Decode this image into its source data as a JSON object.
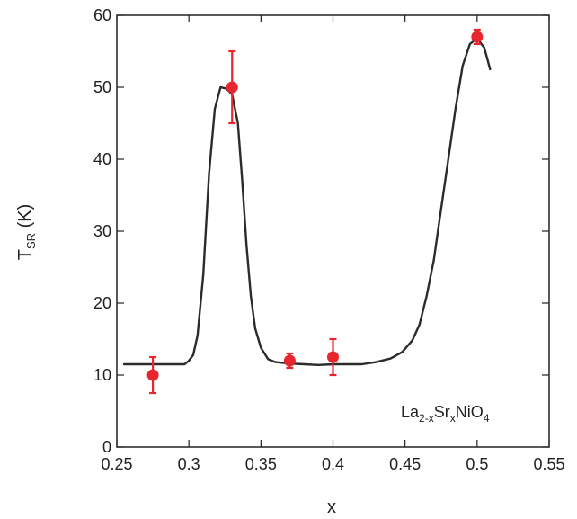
{
  "chart_data": {
    "type": "scatter",
    "xlabel": "x",
    "ylabel": {
      "main": "T",
      "sub": "SR",
      "unit": " (K)"
    },
    "xlim": [
      0.25,
      0.55
    ],
    "ylim": [
      0,
      60
    ],
    "xticks": [
      0.25,
      0.3,
      0.35,
      0.4,
      0.45,
      0.5,
      0.55
    ],
    "xtick_labels": [
      "0.25",
      "0.3",
      "0.35",
      "0.4",
      "0.45",
      "0.5",
      "0.55"
    ],
    "yticks": [
      0,
      10,
      20,
      30,
      40,
      50,
      60
    ],
    "ytick_labels": [
      "0",
      "10",
      "20",
      "30",
      "40",
      "50",
      "60"
    ],
    "grid": false,
    "annotation": {
      "parts": [
        {
          "text": "La",
          "sub": false
        },
        {
          "text": "2-x",
          "sub": true
        },
        {
          "text": "Sr",
          "sub": false
        },
        {
          "text": "x",
          "sub": true
        },
        {
          "text": "NiO",
          "sub": false
        },
        {
          "text": "4",
          "sub": true
        }
      ]
    },
    "points": [
      {
        "x": 0.275,
        "y": 10.0,
        "err_low": 7.5,
        "err_high": 12.5
      },
      {
        "x": 0.33,
        "y": 50.0,
        "err_low": 45.0,
        "err_high": 55.0
      },
      {
        "x": 0.37,
        "y": 12.0,
        "err_low": 11.0,
        "err_high": 13.0
      },
      {
        "x": 0.4,
        "y": 12.5,
        "err_low": 10.0,
        "err_high": 15.0
      },
      {
        "x": 0.5,
        "y": 57.0,
        "err_low": 56.0,
        "err_high": 58.0
      }
    ],
    "curve": {
      "x": [
        0.255,
        0.297,
        0.3,
        0.303,
        0.306,
        0.31,
        0.314,
        0.318,
        0.322,
        0.326,
        0.33,
        0.334,
        0.337,
        0.34,
        0.343,
        0.346,
        0.35,
        0.355,
        0.36,
        0.37,
        0.38,
        0.39,
        0.4,
        0.42,
        0.43,
        0.44,
        0.448,
        0.455,
        0.46,
        0.465,
        0.47,
        0.475,
        0.48,
        0.485,
        0.49,
        0.495,
        0.5,
        0.505,
        0.509
      ],
      "y": [
        11.5,
        11.5,
        12.0,
        12.8,
        15.5,
        24.0,
        38.0,
        47.0,
        50.0,
        49.8,
        49.0,
        45.0,
        37.0,
        28.0,
        21.0,
        16.5,
        13.8,
        12.2,
        11.8,
        11.6,
        11.5,
        11.4,
        11.5,
        11.5,
        11.8,
        12.3,
        13.2,
        14.8,
        17.0,
        21.0,
        26.0,
        33.0,
        40.0,
        47.0,
        53.0,
        56.0,
        56.8,
        55.5,
        52.5
      ]
    },
    "colors": {
      "points": "#e8262e",
      "curve": "#2b2b2b",
      "axes": "#222222"
    }
  }
}
